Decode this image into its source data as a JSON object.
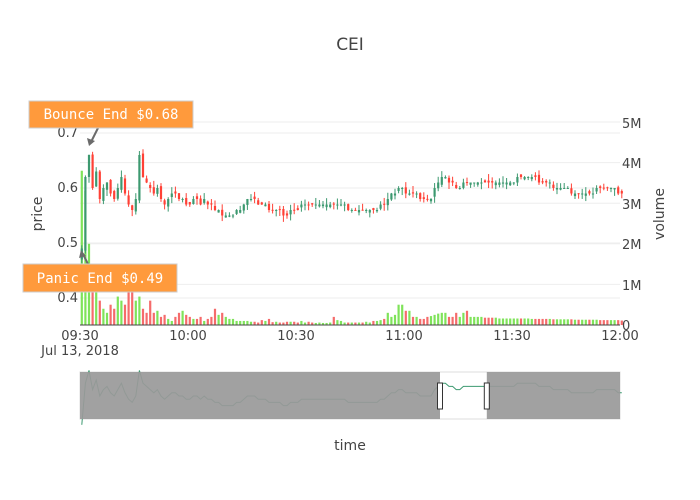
{
  "chart_data": {
    "type": "candlestick",
    "title": "CEI",
    "xlabel": "time",
    "ylabel": "price",
    "y2label": "volume",
    "x_tick_labels": [
      "09:30",
      "10:00",
      "10:30",
      "11:00",
      "11:30",
      "12:00"
    ],
    "x_date_label": "Jul 13, 2018",
    "price_ticks": [
      "0.4",
      "0.5",
      "0.6",
      "0.7"
    ],
    "volume_ticks": [
      "0",
      "1M",
      "2M",
      "3M",
      "4M",
      "5M"
    ],
    "price_range": [
      0.34,
      0.72
    ],
    "volume_range": [
      0,
      5000000
    ],
    "x_range_minutes": [
      0,
      150
    ],
    "grid": true,
    "legend": "none",
    "colors": {
      "up": "#3d9970",
      "down": "#ff4136",
      "vol_up": "#7fe35a",
      "vol_down": "#f56b6b",
      "annotation_bg": "#ff9a3c",
      "annotation_border": "#cccccc",
      "slider_mask": "#999999"
    },
    "annotations": [
      {
        "text": "Bounce End $0.68",
        "x_minute": 0.7,
        "y": 0.66
      },
      {
        "text": "Panic End $0.49",
        "x_minute": 0.4,
        "y": 0.49
      }
    ],
    "range_selection_minutes": [
      100,
      113
    ],
    "close_prices": [
      0.49,
      0.62,
      0.66,
      0.6,
      0.63,
      0.58,
      0.6,
      0.61,
      0.59,
      0.58,
      0.6,
      0.62,
      0.59,
      0.57,
      0.56,
      0.58,
      0.66,
      0.62,
      0.61,
      0.6,
      0.59,
      0.6,
      0.58,
      0.57,
      0.58,
      0.59,
      0.59,
      0.58,
      0.58,
      0.57,
      0.57,
      0.58,
      0.58,
      0.57,
      0.58,
      0.57,
      0.57,
      0.56,
      0.56,
      0.55,
      0.55,
      0.55,
      0.55,
      0.56,
      0.56,
      0.57,
      0.58,
      0.58,
      0.58,
      0.57,
      0.57,
      0.57,
      0.56,
      0.56,
      0.56,
      0.56,
      0.55,
      0.55,
      0.56,
      0.56,
      0.56,
      0.57,
      0.57,
      0.57,
      0.57,
      0.57,
      0.57,
      0.57,
      0.57,
      0.57,
      0.57,
      0.57,
      0.57,
      0.57,
      0.56,
      0.56,
      0.56,
      0.56,
      0.56,
      0.56,
      0.56,
      0.56,
      0.56,
      0.57,
      0.57,
      0.58,
      0.59,
      0.59,
      0.6,
      0.6,
      0.59,
      0.59,
      0.59,
      0.59,
      0.58,
      0.58,
      0.58,
      0.58,
      0.6,
      0.61,
      0.62,
      0.62,
      0.61,
      0.61,
      0.6,
      0.6,
      0.61,
      0.61,
      0.61,
      0.61,
      0.61,
      0.61,
      0.61,
      0.61,
      0.61,
      0.61,
      0.61,
      0.61,
      0.61,
      0.61,
      0.61,
      0.62,
      0.62,
      0.62,
      0.62,
      0.62,
      0.62,
      0.61,
      0.61,
      0.61,
      0.61,
      0.6,
      0.6,
      0.6,
      0.6,
      0.6,
      0.59,
      0.59,
      0.59,
      0.59,
      0.59,
      0.59,
      0.59,
      0.6,
      0.6,
      0.6,
      0.6,
      0.6,
      0.6,
      0.59,
      0.59
    ],
    "volumes": [
      3800000,
      3300000,
      2000000,
      1000000,
      800000,
      600000,
      400000,
      300000,
      500000,
      400000,
      700000,
      600000,
      500000,
      900000,
      1000000,
      600000,
      700000,
      400000,
      300000,
      600000,
      300000,
      350000,
      200000,
      250000,
      150000,
      100000,
      200000,
      300000,
      350000,
      250000,
      200000,
      150000,
      150000,
      200000,
      100000,
      150000,
      200000,
      400000,
      250000,
      300000,
      200000,
      150000,
      150000,
      100000,
      100000,
      100000,
      100000,
      80000,
      80000,
      60000,
      120000,
      100000,
      150000,
      70000,
      80000,
      60000,
      60000,
      80000,
      80000,
      80000,
      60000,
      100000,
      60000,
      80000,
      60000,
      50000,
      60000,
      50000,
      50000,
      60000,
      200000,
      120000,
      100000,
      60000,
      60000,
      60000,
      60000,
      60000,
      60000,
      80000,
      60000,
      100000,
      100000,
      120000,
      150000,
      300000,
      200000,
      250000,
      500000,
      500000,
      350000,
      350000,
      200000,
      200000,
      150000,
      150000,
      200000,
      220000,
      250000,
      280000,
      300000,
      300000,
      200000,
      200000,
      300000,
      200000,
      300000,
      350000,
      200000,
      200000,
      200000,
      200000,
      180000,
      180000,
      180000,
      180000,
      160000,
      160000,
      160000,
      160000,
      160000,
      160000,
      160000,
      160000,
      160000,
      150000,
      150000,
      150000,
      150000,
      150000,
      150000,
      140000,
      140000,
      140000,
      140000,
      140000,
      140000,
      130000,
      130000,
      130000,
      130000,
      130000,
      130000,
      130000,
      120000,
      120000,
      120000,
      120000,
      120000,
      120000,
      110000
    ]
  }
}
